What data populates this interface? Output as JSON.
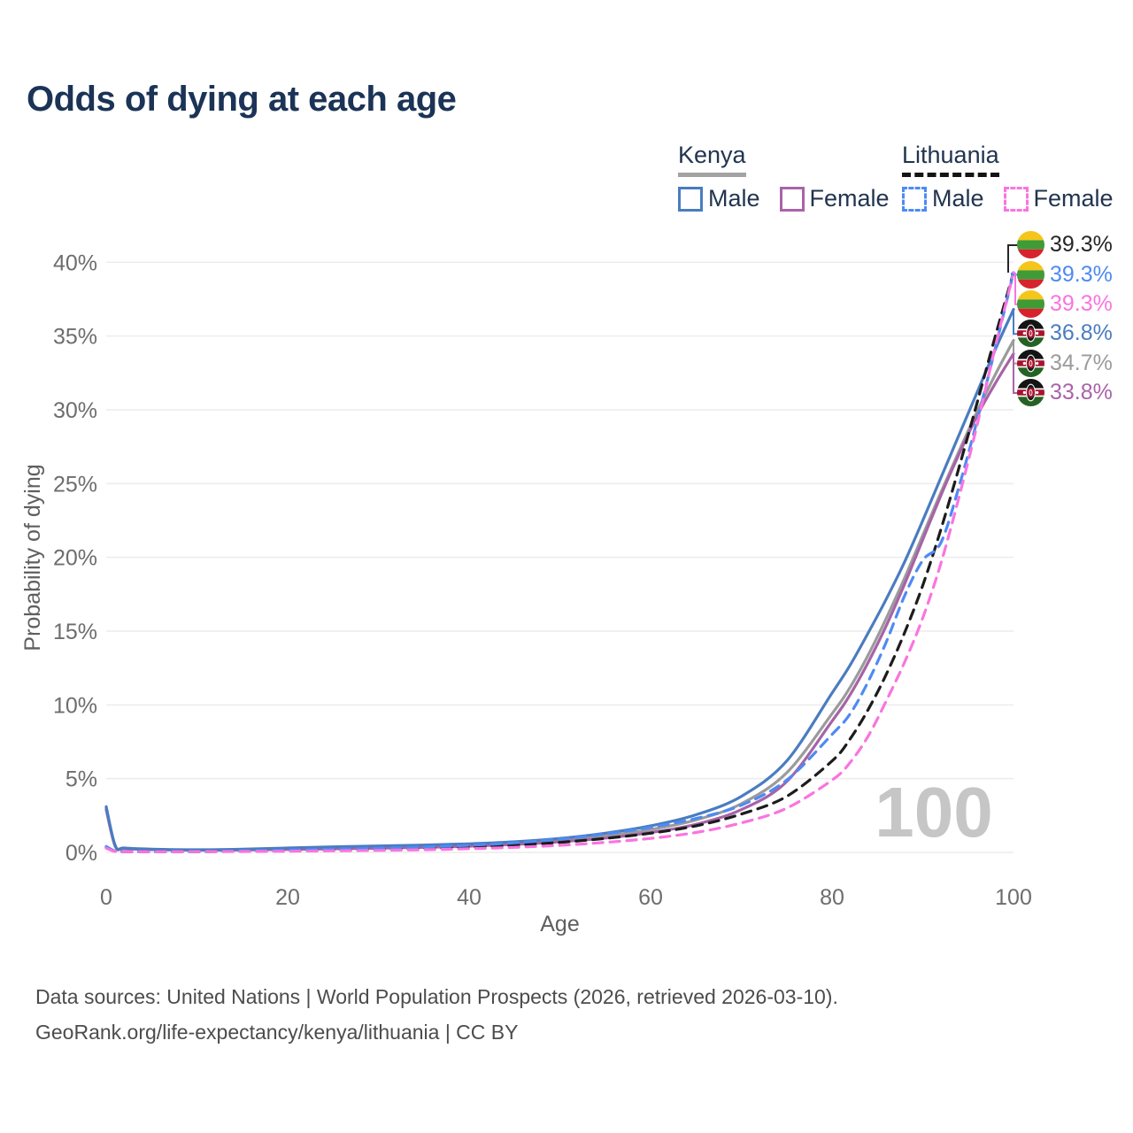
{
  "title": "Odds of dying at each age",
  "legend": {
    "groups": [
      {
        "country": "Kenya",
        "line_style": "solid",
        "average_color": "#a3a3a3",
        "male_label": "Male",
        "male_color": "#4a7cc0",
        "female_label": "Female",
        "female_color": "#a963a9"
      },
      {
        "country": "Lithuania",
        "line_style": "dashed",
        "average_color": "#141414",
        "male_label": "Male",
        "male_color": "#4e8af3",
        "female_label": "Female",
        "female_color": "#fa74df"
      }
    ]
  },
  "endpoints": [
    {
      "value": "39.3%",
      "color": "#262626",
      "flag": "lithuania",
      "end_pct": 39.3
    },
    {
      "value": "39.3%",
      "color": "#4e8af3",
      "flag": "lithuania",
      "end_pct": 39.3
    },
    {
      "value": "39.3%",
      "color": "#fa74df",
      "flag": "lithuania",
      "end_pct": 39.3
    },
    {
      "value": "36.8%",
      "color": "#4a7cc0",
      "flag": "kenya",
      "end_pct": 36.8
    },
    {
      "value": "34.7%",
      "color": "#9b9b9b",
      "flag": "kenya",
      "end_pct": 34.7
    },
    {
      "value": "33.8%",
      "color": "#a963a9",
      "flag": "kenya",
      "end_pct": 33.8
    }
  ],
  "watermark": "100",
  "footer": {
    "line1": "Data sources: United Nations | World Population Prospects (2026, retrieved 2026-03-10).",
    "line2": "GeoRank.org/life-expectancy/kenya/lithuania | CC BY"
  },
  "chart_data": {
    "type": "line",
    "title": "Odds of dying at each age",
    "xlabel": "Age",
    "ylabel": "Probability of dying",
    "xlim": [
      0,
      100
    ],
    "ylim": [
      0,
      40
    ],
    "x_ticks": [
      0,
      20,
      40,
      60,
      80,
      100
    ],
    "y_ticks": [
      "0%",
      "5%",
      "10%",
      "15%",
      "20%",
      "25%",
      "30%",
      "35%",
      "40%"
    ],
    "grid": "horizontal",
    "legend_position": "top-right",
    "x": [
      0,
      1,
      2,
      5,
      10,
      15,
      20,
      25,
      30,
      35,
      40,
      45,
      50,
      55,
      60,
      65,
      70,
      75,
      80,
      82,
      84,
      86,
      88,
      90,
      92,
      94,
      96,
      98,
      100
    ],
    "series": [
      {
        "id": "kenya-average",
        "name": "Kenya — Average",
        "color": "#9b9b9b",
        "dash": false,
        "end_label": "34.7%",
        "values": [
          3.0,
          0.42,
          0.28,
          0.2,
          0.16,
          0.19,
          0.25,
          0.31,
          0.36,
          0.42,
          0.5,
          0.63,
          0.83,
          1.12,
          1.55,
          2.2,
          3.3,
          5.4,
          9.4,
          11.2,
          13.4,
          15.9,
          18.6,
          21.5,
          24.4,
          27.2,
          29.9,
          32.4,
          34.7
        ]
      },
      {
        "id": "kenya-female",
        "name": "Kenya — Female",
        "color": "#a763a7",
        "dash": false,
        "end_label": "33.8%",
        "values": [
          2.9,
          0.4,
          0.26,
          0.19,
          0.15,
          0.16,
          0.2,
          0.24,
          0.28,
          0.34,
          0.42,
          0.54,
          0.72,
          0.97,
          1.35,
          1.9,
          2.9,
          4.8,
          8.9,
          10.7,
          12.9,
          15.4,
          18.2,
          21.2,
          24.2,
          27.0,
          29.6,
          31.8,
          33.8
        ]
      },
      {
        "id": "kenya-male",
        "name": "Kenya — Male",
        "color": "#4a7cc0",
        "dash": false,
        "end_label": "36.8%",
        "values": [
          3.1,
          0.45,
          0.3,
          0.22,
          0.18,
          0.22,
          0.3,
          0.38,
          0.44,
          0.5,
          0.58,
          0.72,
          0.95,
          1.3,
          1.8,
          2.55,
          3.8,
          6.2,
          10.8,
          12.7,
          14.9,
          17.2,
          19.7,
          22.5,
          25.4,
          28.3,
          31.2,
          34.1,
          36.8
        ]
      },
      {
        "id": "lithuania-average",
        "name": "Lithuania — Average",
        "color": "#1c1c1c",
        "dash": true,
        "end_label": "39.3%",
        "values": [
          0.33,
          0.07,
          0.05,
          0.05,
          0.05,
          0.08,
          0.12,
          0.17,
          0.21,
          0.27,
          0.36,
          0.49,
          0.68,
          0.95,
          1.3,
          1.8,
          2.6,
          3.8,
          6.2,
          7.7,
          9.7,
          12.1,
          14.9,
          18.1,
          21.9,
          26.1,
          30.5,
          35.0,
          39.3
        ]
      },
      {
        "id": "lithuania-male",
        "name": "Lithuania — Male",
        "color": "#4e8af3",
        "dash": true,
        "end_label": "39.3%",
        "values": [
          0.4,
          0.08,
          0.06,
          0.05,
          0.06,
          0.1,
          0.16,
          0.22,
          0.28,
          0.36,
          0.48,
          0.65,
          0.9,
          1.25,
          1.7,
          2.3,
          3.2,
          4.9,
          8.0,
          9.4,
          11.6,
          14.3,
          17.4,
          19.8,
          21.0,
          24.8,
          29.3,
          34.2,
          39.3
        ]
      },
      {
        "id": "lithuania-female",
        "name": "Lithuania — Female",
        "color": "#fa74df",
        "dash": true,
        "end_label": "39.3%",
        "values": [
          0.28,
          0.06,
          0.05,
          0.04,
          0.05,
          0.06,
          0.08,
          0.11,
          0.14,
          0.18,
          0.25,
          0.34,
          0.48,
          0.68,
          0.95,
          1.35,
          2.0,
          3.0,
          4.9,
          6.1,
          7.9,
          10.3,
          12.9,
          15.9,
          19.6,
          24.1,
          29.0,
          34.3,
          39.3
        ]
      }
    ]
  }
}
